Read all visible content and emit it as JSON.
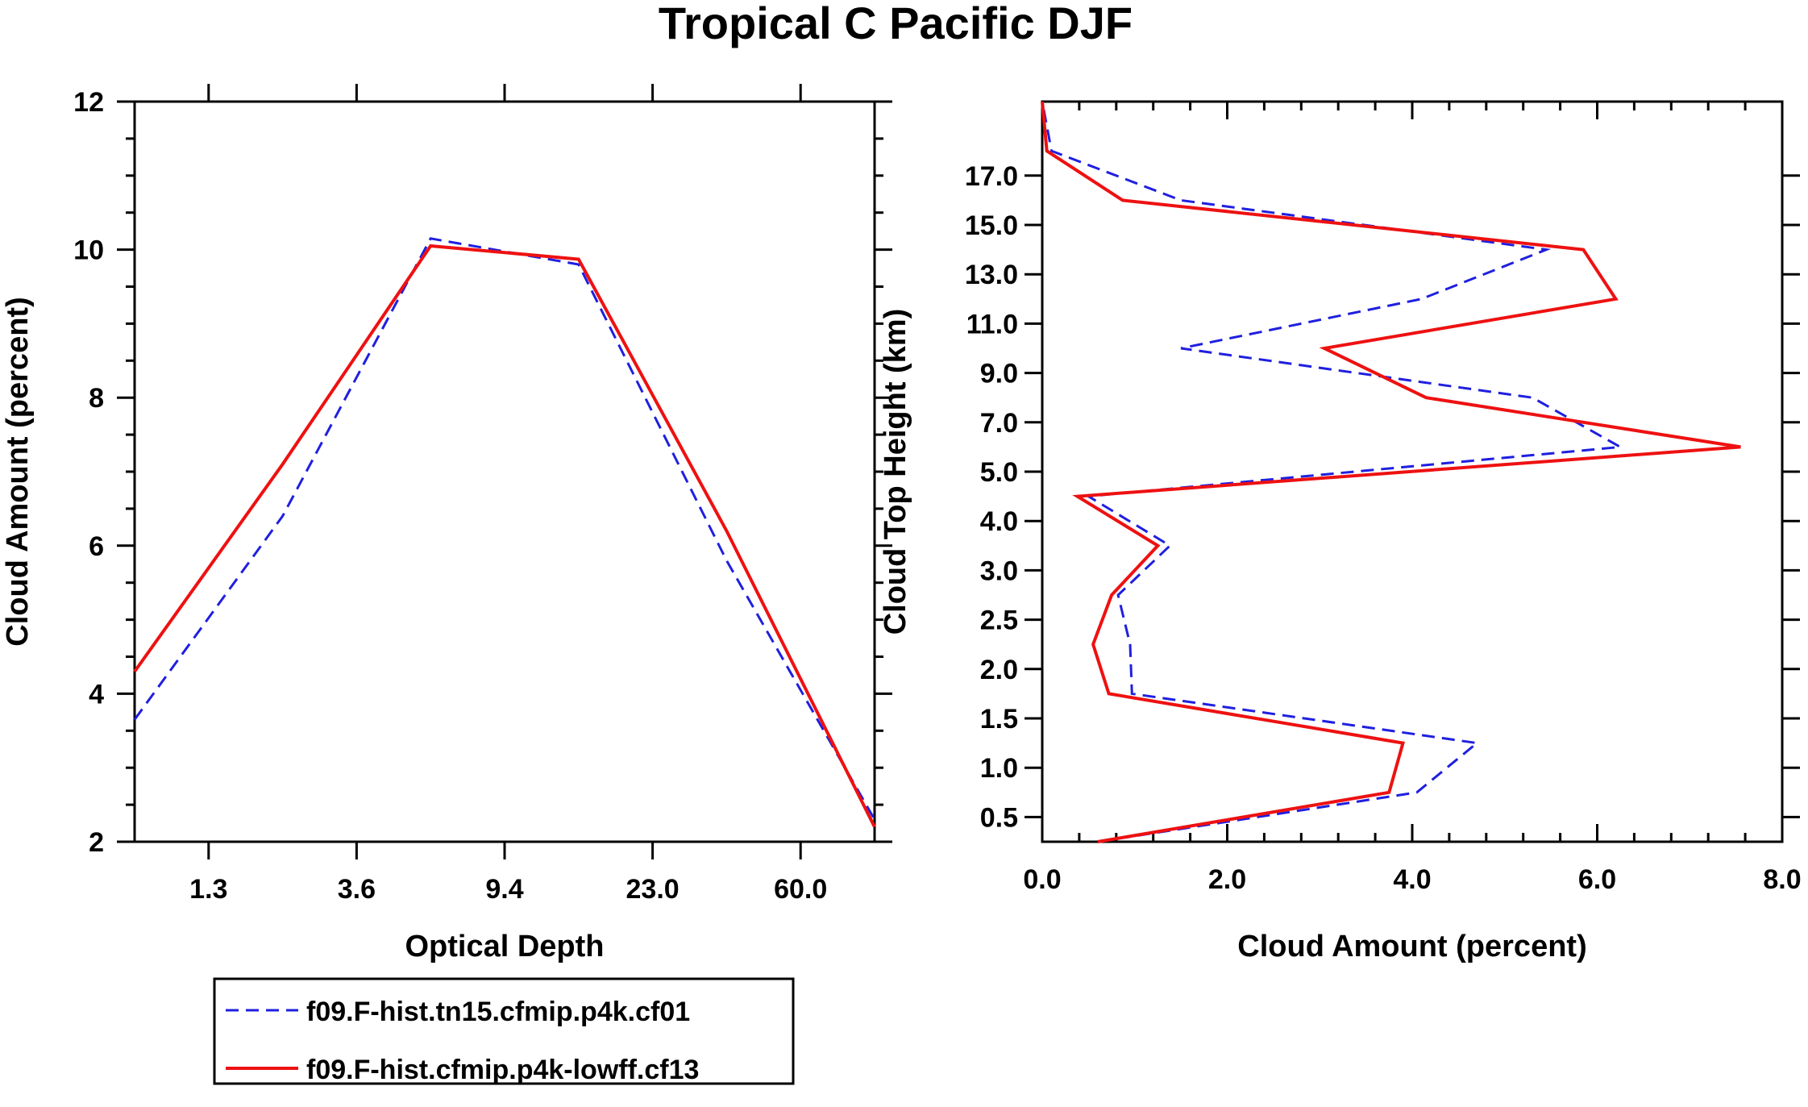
{
  "figure": {
    "title": "Tropical C Pacific DJF"
  },
  "colors": {
    "series_a": "#1f1fe0",
    "series_b": "#ee1111",
    "axis": "#000000"
  },
  "legend": {
    "entries": [
      {
        "label": "f09.F-hist.tn15.cfmip.p4k.cf01",
        "style": "dashed",
        "color": "#1f1fe0"
      },
      {
        "label": "f09.F-hist.cfmip.p4k-lowff.cf13",
        "style": "solid",
        "color": "#ee1111"
      }
    ]
  },
  "chart_data": [
    {
      "type": "line",
      "title": "",
      "xlabel": "Optical Depth",
      "ylabel": "Cloud Amount (percent)",
      "x_tick_labels": [
        "1.3",
        "3.6",
        "9.4",
        "23.0",
        "60.0"
      ],
      "x_ticks_at_bin": [
        1,
        3,
        5,
        7,
        9
      ],
      "x_range_bin": [
        0,
        10
      ],
      "ylim": [
        2,
        12
      ],
      "y_ticks": [
        2,
        4,
        6,
        8,
        10,
        12
      ],
      "y_minor_step": 0.5,
      "x_bin_index": [
        0,
        2,
        4,
        6,
        8,
        10
      ],
      "series": [
        {
          "name": "f09.F-hist.tn15.cfmip.p4k.cf01",
          "values": [
            3.65,
            6.4,
            10.15,
            9.8,
            5.8,
            2.3
          ]
        },
        {
          "name": "f09.F-hist.cfmip.p4k-lowff.cf13",
          "values": [
            4.3,
            7.1,
            10.05,
            9.87,
            6.2,
            2.2
          ]
        }
      ]
    },
    {
      "type": "line",
      "orientation": "vertical-profile",
      "xlabel": "Cloud Amount (percent)",
      "ylabel": "Cloud Top Height (km)",
      "xlim": [
        0,
        8
      ],
      "x_ticks": [
        0,
        2,
        4,
        6,
        8
      ],
      "x_tick_labels": [
        "0.0",
        "2.0",
        "4.0",
        "6.0",
        "8.0"
      ],
      "x_minor_step": 0.4,
      "y_tick_labels": [
        "0.5",
        "1.0",
        "1.5",
        "2.0",
        "2.5",
        "3.0",
        "4.0",
        "5.0",
        "7.0",
        "9.0",
        "11.0",
        "13.0",
        "15.0",
        "17.0"
      ],
      "y_level_index": [
        0,
        1,
        2,
        3,
        4,
        5,
        6,
        7,
        8,
        9,
        10,
        11,
        12,
        13,
        14,
        15
      ],
      "y_index_range": [
        0,
        15
      ],
      "series": [
        {
          "name": "f09.F-hist.tn15.cfmip.p4k.cf01",
          "values": [
            0.6,
            4.05,
            4.7,
            0.97,
            0.95,
            0.82,
            1.38,
            0.5,
            6.25,
            5.3,
            1.5,
            4.1,
            5.45,
            1.5,
            0.1,
            0.0
          ]
        },
        {
          "name": "f09.F-hist.cfmip.p4k-lowff.cf13",
          "values": [
            0.6,
            3.75,
            3.9,
            0.72,
            0.55,
            0.75,
            1.25,
            0.38,
            7.55,
            4.15,
            3.05,
            6.2,
            5.85,
            0.87,
            0.05,
            0.0
          ]
        }
      ]
    }
  ]
}
